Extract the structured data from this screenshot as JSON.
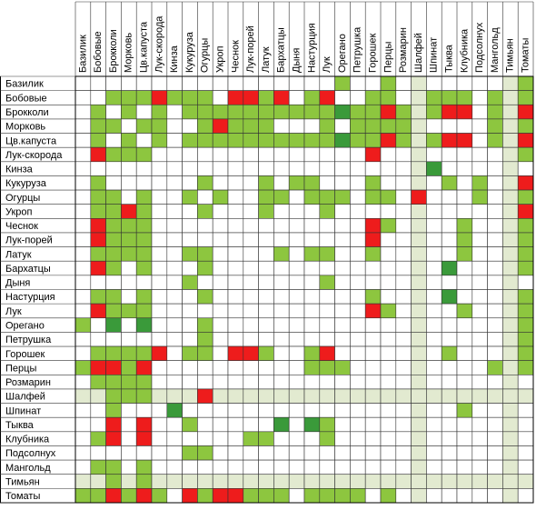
{
  "legend": {
    "G": "#8dc63f",
    "D": "#3a9a3a",
    "R": "#ee1c1c",
    "W": "#ffffff",
    "L": "#e2ead0"
  },
  "columns": [
    "Базилик",
    "Бобовые",
    "Брокколи",
    "Морковь",
    "Цв.капуста",
    "Лук-скорода",
    "Кинза",
    "Кукуруза",
    "Огурцы",
    "Укроп",
    "Чеснок",
    "Лук-порей",
    "Латук",
    "Бархатцы",
    "Дыня",
    "Настурция",
    "Лук",
    "Орегано",
    "Петрушка",
    "Горошек",
    "Перцы",
    "Розмарин",
    "Шалфей",
    "Шпинат",
    "Тыква",
    "Клубника",
    "Подсолнух",
    "Мангольд",
    "Тимьян",
    "Томаты"
  ],
  "rows": [
    {
      "label": "Базилик",
      "cells": "WWWWWWWWWWWWWWWWWGWWGWLWWWWWLG"
    },
    {
      "label": "Бобовые",
      "cells": "WWGGGRGGGWRRGRWGRWWGGWLGGGWGLG"
    },
    {
      "label": "Брокколи",
      "cells": "WGWGWGWGGGGGGGGGGDGGRGLGRRWGLR"
    },
    {
      "label": "Морковь",
      "cells": "WGGWGGWWGRGGGWWWGWGGGGLWWWWGLG"
    },
    {
      "label": "Цв.капуста",
      "cells": "WGWGWGWGGGGGGGGGGDGGRGLGRRWGLR"
    },
    {
      "label": "Лук-скорода",
      "cells": "WRGGGWWWWWWWWWWWWWWRWWLWWWWWLG"
    },
    {
      "label": "Кинза",
      "cells": "WWWWWWWWWWWWWWWWWWWWWWLDWWWWLW"
    },
    {
      "label": "Кукуруза",
      "cells": "WGWWWWWWGWWWGWGGWWWGWWLWGWGWLR"
    },
    {
      "label": "Огурцы",
      "cells": "WGGWGWWGWGWWGGWGGGWGGWRWWWGWLG"
    },
    {
      "label": "Укроп",
      "cells": "WGGRGWWWGWWWGWWWGWWWWWLWWWWWLR"
    },
    {
      "label": "Чеснок",
      "cells": "WRGGGWWWWWWWWWWWWWWRGWLWWGWWLG"
    },
    {
      "label": "Лук-порей",
      "cells": "WRGGGWWWWWWWWWWWWWWRWWLWWGWWLG"
    },
    {
      "label": "Латук",
      "cells": "WGGGGWWGGWWWWGWGGWWGWWLWWGWWLG"
    },
    {
      "label": "Бархатцы",
      "cells": "WRGWGWWWGWWWWWWWWWWWWWLWDWWWLG"
    },
    {
      "label": "Дыня",
      "cells": "WWWWWWWGWWWWWWWWGWWWWWLWWWWWLW"
    },
    {
      "label": "Настурция",
      "cells": "WGGWGWWWGWWWWWWWWWWGWWLWDWWWLG"
    },
    {
      "label": "Лук",
      "cells": "WRGGGWWWWWWWWWWWWWWRGWLWWGWWLG"
    },
    {
      "label": "Орегано",
      "cells": "GWDWDWWWGWWWWWWWWWWWWWLWWWWWLG"
    },
    {
      "label": "Петрушка",
      "cells": "WWWWWWWWGWWWWWWWWWWWWWLWWWWWLG"
    },
    {
      "label": "Горошек",
      "cells": "WGGGGRWGGWRRGWWGRWWWWWLWGWWWLG"
    },
    {
      "label": "Перцы",
      "cells": "GRRGRWWWWWWWWWWGGGWWWWLWWWWGLG"
    },
    {
      "label": "Розмарин",
      "cells": "WGGGGWWWWWWWWWWWWWWWWWLWWWWWLW"
    },
    {
      "label": "Шалфей",
      "cells": "LLGGGLLLRLLLLLLLLLLLLLLLLLLLLL"
    },
    {
      "label": "Шпинат",
      "cells": "WWGWWWDWWWWWWWWWWWWWWWLWWGWWLW"
    },
    {
      "label": "Тыква",
      "cells": "WWRWRWWGWWWWWDWDGWWWWWLWWWWWLW"
    },
    {
      "label": "Клубника",
      "cells": "WGRWRWWWWWWGGWWWGWWWWWLWWWWWLW"
    },
    {
      "label": "Подсолнух",
      "cells": "WWWWWWWGGWWWWWWWWWWWWWLWWWWWLW"
    },
    {
      "label": "Мангольд",
      "cells": "WGGWGWWWWWWWWWWWWWWWWWLWWWWWLW"
    },
    {
      "label": "Тимьян",
      "cells": "LLGLGLLLLLLLLLLLLLLLLLLLLLLLLL"
    },
    {
      "label": "Томаты",
      "cells": "GGRGRGWRGRRGGGWGGGGWGWLWWWWWLW"
    }
  ]
}
